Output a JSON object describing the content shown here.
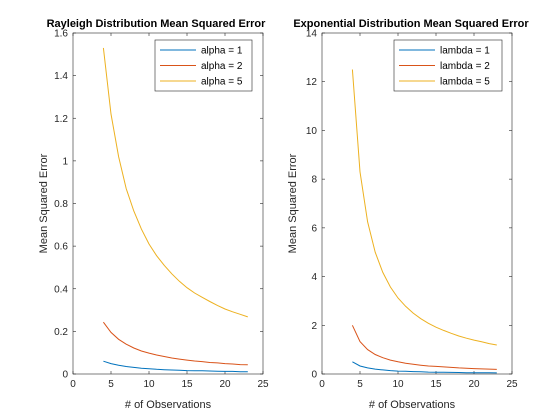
{
  "figure_background": "#ffffff",
  "chart_data": [
    {
      "type": "line",
      "title": "Rayleigh Distribution Mean Squared Error",
      "xlabel": "# of Observations",
      "ylabel": "Mean Squared Error",
      "xlim": [
        0,
        25
      ],
      "ylim": [
        0,
        1.6
      ],
      "xticks": [
        0,
        5,
        10,
        15,
        20,
        25
      ],
      "xtick_labels": [
        "0",
        "5",
        "10",
        "15",
        "20",
        "25"
      ],
      "yticks": [
        0,
        0.2,
        0.4,
        0.6,
        0.8,
        1,
        1.2,
        1.4,
        1.6
      ],
      "ytick_labels": [
        "0",
        "0.2",
        "0.4",
        "0.6",
        "0.8",
        "1",
        "1.2",
        "1.4",
        "1.6"
      ],
      "grid": false,
      "legend_position": "top-right",
      "x": [
        4,
        5,
        6,
        7,
        8,
        9,
        10,
        11,
        12,
        13,
        14,
        15,
        16,
        17,
        18,
        19,
        20,
        21,
        22,
        23
      ],
      "series": [
        {
          "name": "alpha = 1",
          "color": "#0072bd",
          "values": [
            0.06,
            0.049,
            0.041,
            0.035,
            0.031,
            0.027,
            0.025,
            0.022,
            0.02,
            0.019,
            0.018,
            0.016,
            0.015,
            0.015,
            0.014,
            0.013,
            0.012,
            0.012,
            0.011,
            0.011
          ]
        },
        {
          "name": "alpha = 2",
          "color": "#d95319",
          "values": [
            0.243,
            0.195,
            0.163,
            0.14,
            0.122,
            0.108,
            0.098,
            0.089,
            0.082,
            0.075,
            0.07,
            0.065,
            0.061,
            0.058,
            0.054,
            0.052,
            0.049,
            0.047,
            0.044,
            0.043
          ]
        },
        {
          "name": "alpha = 5",
          "color": "#edb120",
          "values": [
            1.53,
            1.22,
            1.02,
            0.87,
            0.765,
            0.68,
            0.61,
            0.555,
            0.51,
            0.47,
            0.435,
            0.405,
            0.38,
            0.36,
            0.34,
            0.322,
            0.305,
            0.292,
            0.28,
            0.268
          ]
        }
      ]
    },
    {
      "type": "line",
      "title": "Exponential Distribution Mean Squared Error",
      "xlabel": "# of Observations",
      "ylabel": "Mean Squared Error",
      "xlim": [
        0,
        25
      ],
      "ylim": [
        0,
        14
      ],
      "xticks": [
        0,
        5,
        10,
        15,
        20,
        25
      ],
      "xtick_labels": [
        "0",
        "5",
        "10",
        "15",
        "20",
        "25"
      ],
      "yticks": [
        0,
        2,
        4,
        6,
        8,
        10,
        12,
        14
      ],
      "ytick_labels": [
        "0",
        "2",
        "4",
        "6",
        "8",
        "10",
        "12",
        "14"
      ],
      "grid": false,
      "legend_position": "top-right",
      "x": [
        4,
        5,
        6,
        7,
        8,
        9,
        10,
        11,
        12,
        13,
        14,
        15,
        16,
        17,
        18,
        19,
        20,
        21,
        22,
        23
      ],
      "series": [
        {
          "name": "lambda = 1",
          "color": "#0072bd",
          "values": [
            0.5,
            0.33,
            0.25,
            0.2,
            0.17,
            0.14,
            0.12,
            0.11,
            0.1,
            0.09,
            0.08,
            0.075,
            0.07,
            0.065,
            0.06,
            0.055,
            0.052,
            0.05,
            0.048,
            0.045
          ]
        },
        {
          "name": "lambda = 2",
          "color": "#d95319",
          "values": [
            2.0,
            1.33,
            1.0,
            0.8,
            0.67,
            0.57,
            0.5,
            0.44,
            0.4,
            0.36,
            0.33,
            0.31,
            0.29,
            0.27,
            0.25,
            0.24,
            0.22,
            0.21,
            0.2,
            0.19
          ]
        },
        {
          "name": "lambda = 5",
          "color": "#edb120",
          "values": [
            12.5,
            8.3,
            6.25,
            5.0,
            4.17,
            3.57,
            3.12,
            2.78,
            2.5,
            2.27,
            2.08,
            1.92,
            1.79,
            1.67,
            1.56,
            1.47,
            1.39,
            1.32,
            1.25,
            1.19
          ]
        }
      ]
    }
  ]
}
